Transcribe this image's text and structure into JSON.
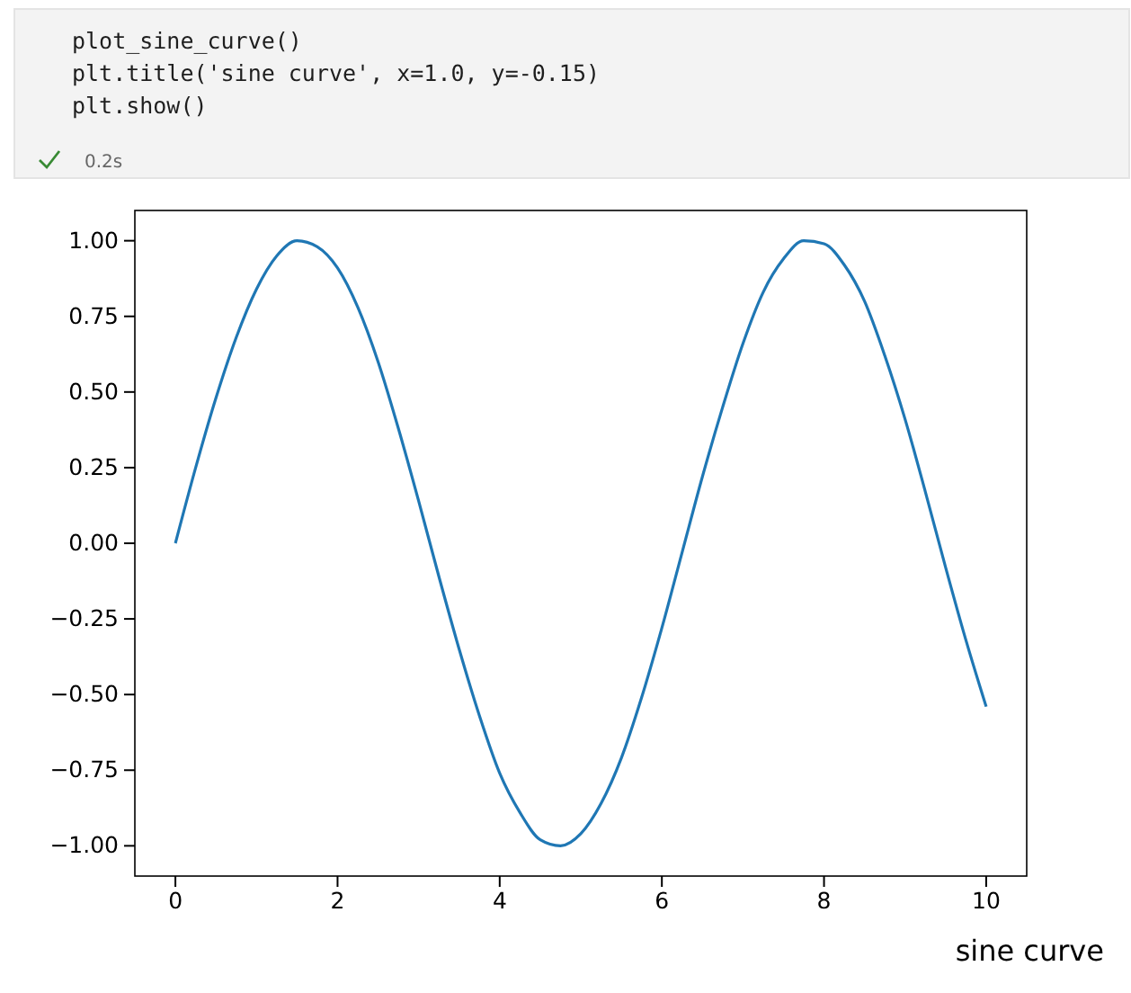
{
  "chart_data": {
    "type": "line",
    "title": "sine curve",
    "annotations": [
      "plot_sine_curve()",
      "plt.title('sine curve', x=1.0, y=-0.15)",
      "plt.show()",
      "0.2s"
    ],
    "x": [
      0,
      0.25,
      0.5,
      0.75,
      1,
      1.25,
      1.5,
      1.75,
      2,
      2.25,
      2.5,
      2.75,
      3,
      3.25,
      3.5,
      3.75,
      4,
      4.25,
      4.5,
      4.75,
      5,
      5.25,
      5.5,
      5.75,
      6,
      6.25,
      6.5,
      6.75,
      7,
      7.25,
      7.5,
      7.75,
      8,
      8.25,
      8.5,
      8.75,
      9,
      9.25,
      9.5,
      9.75,
      10
    ],
    "series": [
      {
        "color": "#1f77b4",
        "values": [
          0,
          0.25,
          0.48,
          0.68,
          0.84,
          0.95,
          1.0,
          0.98,
          0.91,
          0.78,
          0.6,
          0.38,
          0.14,
          -0.11,
          -0.35,
          -0.57,
          -0.76,
          -0.89,
          -0.98,
          -1.0,
          -0.96,
          -0.86,
          -0.71,
          -0.51,
          -0.28,
          -0.03,
          0.22,
          0.45,
          0.66,
          0.83,
          0.94,
          1.0,
          0.99,
          0.92,
          0.8,
          0.62,
          0.41,
          0.17,
          -0.08,
          -0.32,
          -0.54
        ]
      }
    ],
    "xlim": [
      -0.5,
      10.5
    ],
    "ylim": [
      -1.1,
      1.1
    ],
    "xticks": [
      0,
      2,
      4,
      6,
      8,
      10
    ],
    "yticks": [
      {
        "value": -1,
        "label": "−1.00"
      },
      {
        "value": -0.75,
        "label": "−0.75"
      },
      {
        "value": -0.5,
        "label": "−0.50"
      },
      {
        "value": -0.25,
        "label": "−0.25"
      },
      {
        "value": 0,
        "label": "0.00"
      },
      {
        "value": 0.25,
        "label": "0.25"
      },
      {
        "value": 0.5,
        "label": "0.50"
      },
      {
        "value": 0.75,
        "label": "0.75"
      },
      {
        "value": 1,
        "label": "1.00"
      }
    ],
    "grid": false
  }
}
